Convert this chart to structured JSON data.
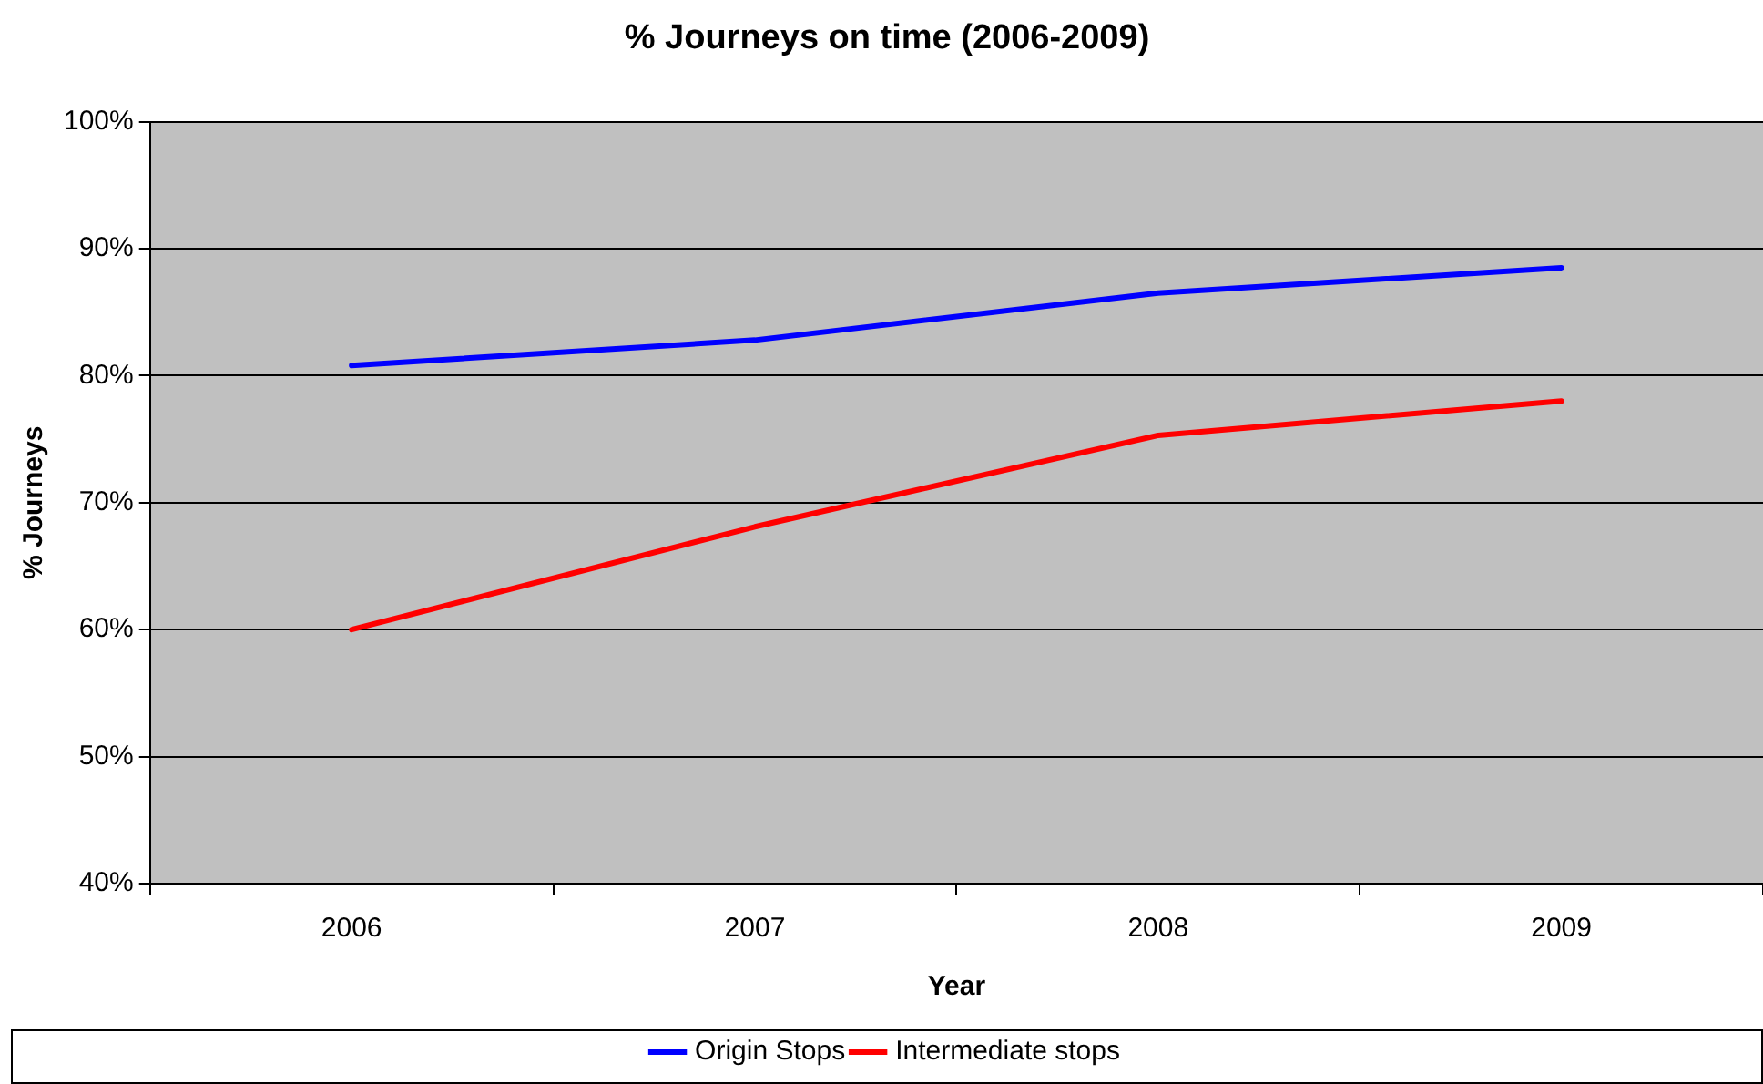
{
  "chart_data": {
    "type": "line",
    "title": "% Journeys on time (2006-2009)",
    "xlabel": "Year",
    "ylabel": "% Journeys",
    "categories": [
      "2006",
      "2007",
      "2008",
      "2009"
    ],
    "series": [
      {
        "name": "Origin Stops",
        "color": "#0000ff",
        "values": [
          80.8,
          82.8,
          86.5,
          88.5
        ]
      },
      {
        "name": "Intermediate stops",
        "color": "#ff0000",
        "values": [
          60.0,
          68.1,
          75.3,
          78.0
        ]
      }
    ],
    "ylim": [
      40,
      100
    ],
    "yticks": [
      {
        "value": 40,
        "label": "40%"
      },
      {
        "value": 50,
        "label": "50%"
      },
      {
        "value": 60,
        "label": "60%"
      },
      {
        "value": 70,
        "label": "70%"
      },
      {
        "value": 80,
        "label": "80%"
      },
      {
        "value": 90,
        "label": "90%"
      },
      {
        "value": 100,
        "label": "100%"
      }
    ],
    "grid": "y",
    "legend": "bottom",
    "marker": "none",
    "line_style": "solid"
  }
}
